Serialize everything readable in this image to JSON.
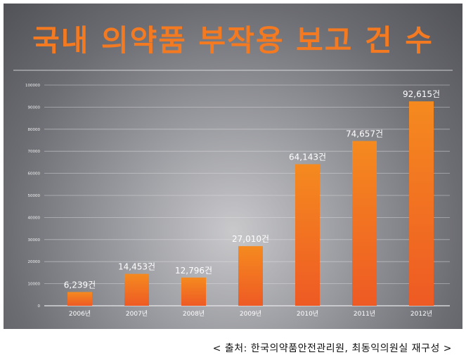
{
  "chart_data": {
    "type": "bar",
    "title": "국내 의약품 부작용 보고 건 수",
    "categories": [
      "2006년",
      "2007년",
      "2008년",
      "2009년",
      "2010년",
      "2011년",
      "2012년"
    ],
    "values": [
      6239,
      14453,
      12796,
      27010,
      64143,
      74657,
      92615
    ],
    "data_labels": [
      "6,239건",
      "14,453건",
      "12,796건",
      "27,010건",
      "64,143건",
      "74,657건",
      "92,615건"
    ],
    "yticks": [
      0,
      10000,
      20000,
      30000,
      40000,
      50000,
      60000,
      70000,
      80000,
      90000,
      100000
    ],
    "ytick_labels": [
      "0",
      "10000",
      "20000",
      "30000",
      "40000",
      "50000",
      "60000",
      "70000",
      "80000",
      "90000",
      "100000"
    ],
    "ylim": [
      0,
      100000
    ],
    "grid": true,
    "xlabel": "",
    "ylabel": "",
    "colors": {
      "bar_top": "#f58a1f",
      "bar_bottom": "#ee5a24",
      "title": "#f47a22",
      "label": "#ffffff",
      "grid": "#d0d0d4"
    }
  },
  "source": "< 출처: 한국의약품안전관리원, 최동익의원실 재구성 >"
}
